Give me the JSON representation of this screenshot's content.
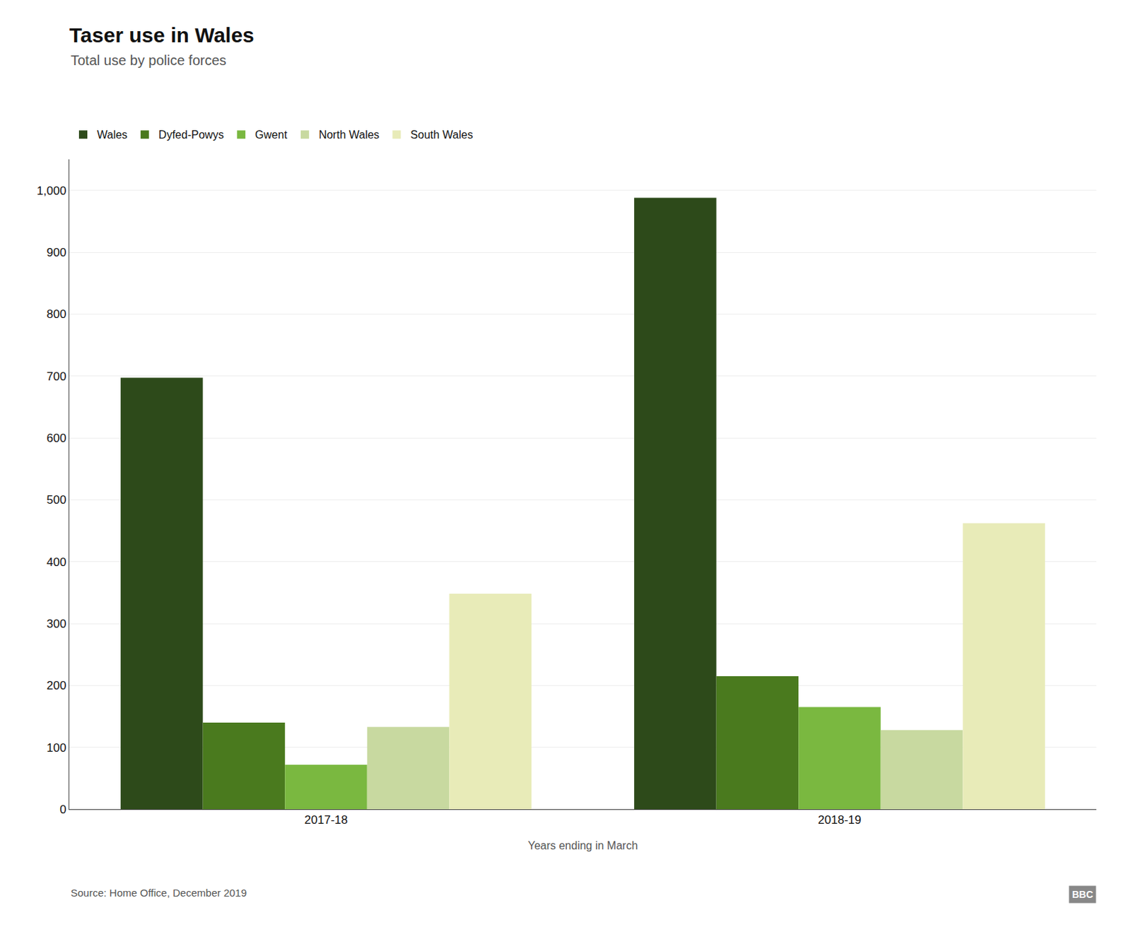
{
  "chart_data": {
    "type": "bar",
    "title": "Taser use in Wales",
    "subtitle": "Total use by police forces",
    "xlabel": "Years ending in March",
    "annotations": [
      "Source: Home Office, December 2019",
      "BBC"
    ],
    "categories": [
      "2017-18",
      "2018-19"
    ],
    "series": [
      {
        "name": "Wales",
        "color": "#2d4a1a",
        "values": [
          697,
          988
        ]
      },
      {
        "name": "Dyfed-Powys",
        "color": "#4a7a1e",
        "values": [
          140,
          215
        ]
      },
      {
        "name": "Gwent",
        "color": "#7ab840",
        "values": [
          72,
          165
        ]
      },
      {
        "name": "North Wales",
        "color": "#c8d9a0",
        "values": [
          133,
          128
        ]
      },
      {
        "name": "South Wales",
        "color": "#e8ebb8",
        "values": [
          348,
          462
        ]
      }
    ],
    "ylim": [
      0,
      1050
    ],
    "yticks": [
      0,
      100,
      200,
      300,
      400,
      500,
      600,
      700,
      800,
      900,
      {
        "value": 1000,
        "label": "1,000"
      }
    ],
    "grid": true,
    "legend": "top"
  }
}
